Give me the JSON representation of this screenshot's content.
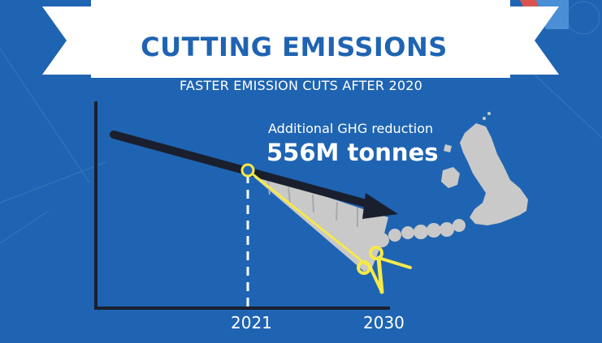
{
  "banner": {
    "title": "CUTTING EMISSIONS"
  },
  "subtitle": "FASTER EMISSION CUTS AFTER 2020",
  "callout": {
    "label": "Additional GHG reduction",
    "value": "556M tonnes"
  },
  "axis": {
    "ticks": [
      "2021",
      "2030"
    ]
  },
  "colors": {
    "background": "#1f64b2",
    "banner": "#ffffff",
    "title_text": "#1f64b2",
    "arrow": "#1a1f2e",
    "cut_line": "#f5e94a",
    "reduction_area": "#c9c9c9",
    "map": "#c9c9c9",
    "axis": "#1a1f2e"
  },
  "icons": [
    "scissors-icon",
    "uk-map-icon",
    "cut-point-marker-icon"
  ]
}
